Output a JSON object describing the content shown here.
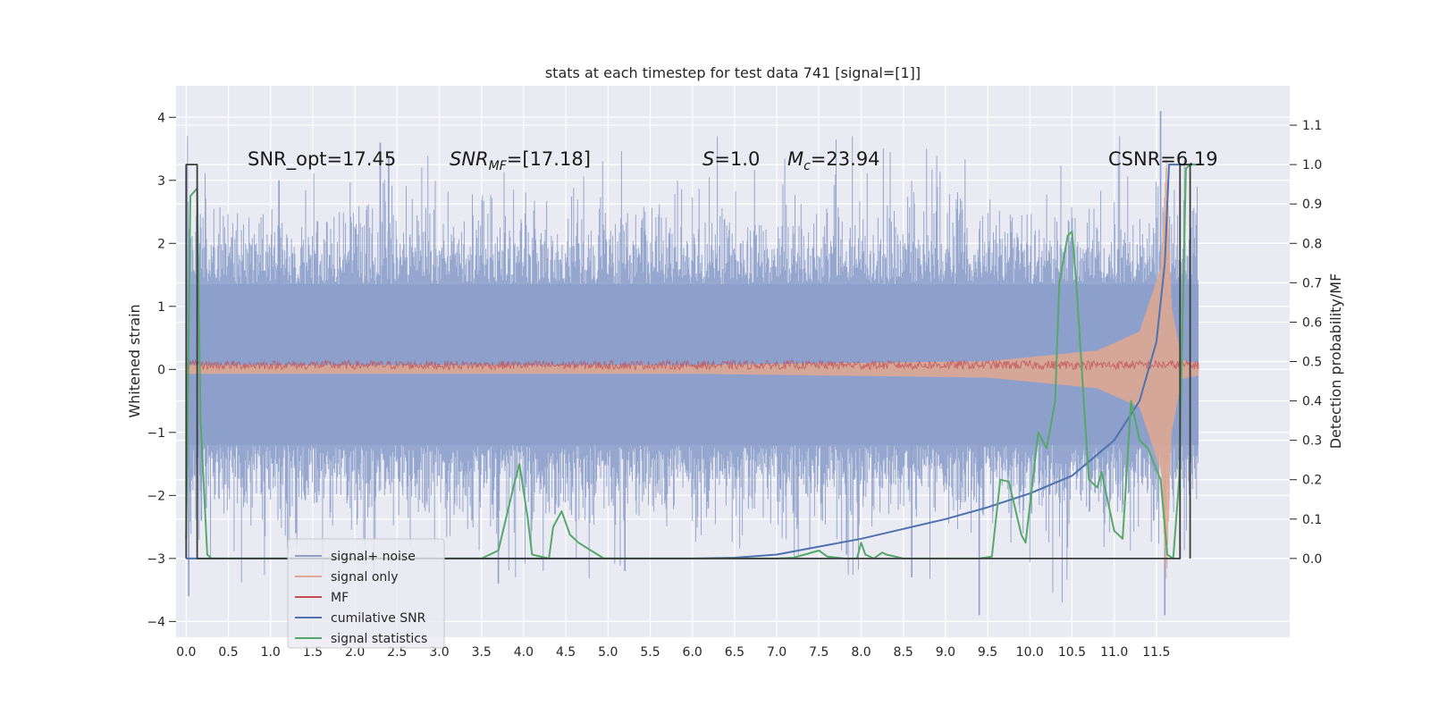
{
  "chart_data": {
    "type": "line",
    "title": "stats at each timestep for test data 741 [signal=[1]]",
    "xlabel": "",
    "ylabel": "Whitened strain",
    "ylabel_right": "Detection probability/MF",
    "xlim": [
      -0.12,
      13.08
    ],
    "ylim": [
      -4.25,
      4.5
    ],
    "ylim_right": [
      -0.2,
      1.2
    ],
    "grid": true,
    "legend_position": "lower-left",
    "x_ticks": [
      0.0,
      0.5,
      1.0,
      1.5,
      2.0,
      2.5,
      3.0,
      3.5,
      4.0,
      4.5,
      5.0,
      5.5,
      6.0,
      6.5,
      7.0,
      7.5,
      8.0,
      8.5,
      9.0,
      9.5,
      10.0,
      10.5,
      11.0,
      11.5
    ],
    "x_tick_labels": [
      "0.0",
      "0.5",
      "1.0",
      "1.5",
      "2.0",
      "2.5",
      "3.0",
      "3.5",
      "4.0",
      "4.5",
      "5.0",
      "5.5",
      "6.0",
      "6.5",
      "7.0",
      "7.5",
      "8.0",
      "8.5",
      "9.0",
      "9.5",
      "10.0",
      "10.5",
      "11.0",
      "11.5"
    ],
    "y_ticks": [
      -4,
      -3,
      -2,
      -1,
      0,
      1,
      2,
      3,
      4
    ],
    "y_tick_labels": [
      "−4",
      "−3",
      "−2",
      "−1",
      "0",
      "1",
      "2",
      "3",
      "4"
    ],
    "y_right_ticks": [
      0.0,
      0.1,
      0.2,
      0.3,
      0.4,
      0.5,
      0.6,
      0.7,
      0.8,
      0.9,
      1.0,
      1.1
    ],
    "y_right_tick_labels": [
      "0.0",
      "0.1",
      "0.2",
      "0.3",
      "0.4",
      "0.5",
      "0.6",
      "0.7",
      "0.8",
      "0.9",
      "1.0",
      "1.1"
    ],
    "annotations": {
      "snr_opt": "SNR_opt=17.45",
      "snr_mf_base": "SNR",
      "snr_mf_sub": "MF",
      "snr_mf_tail": "=[17.18]",
      "s_var": "S",
      "s_tail": "=1.0",
      "mc_base": "M",
      "mc_sub": "c",
      "mc_tail": "=23.94",
      "csnr": "CSNR=6.19"
    },
    "series": [
      {
        "name": "signal+ noise",
        "color": "#8da0cb",
        "kind": "noise_band",
        "x_range": [
          0.0,
          12.0
        ],
        "envelope": [
          -1.2,
          1.35
        ],
        "extreme_range": [
          -3.9,
          4.1
        ],
        "values": [
          {
            "x": 0.0,
            "y": 3.2
          },
          {
            "x": 0.03,
            "y": -3.6
          },
          {
            "x": 0.18,
            "y": -2.4
          },
          {
            "x": 1.1,
            "y": 3.0
          },
          {
            "x": 1.3,
            "y": -2.6
          },
          {
            "x": 2.3,
            "y": 3.6
          },
          {
            "x": 2.4,
            "y": 3.4
          },
          {
            "x": 3.7,
            "y": -3.4
          },
          {
            "x": 5.2,
            "y": -3.2
          },
          {
            "x": 8.6,
            "y": -3.3
          },
          {
            "x": 9.4,
            "y": -3.9
          },
          {
            "x": 11.55,
            "y": 4.1
          },
          {
            "x": 11.6,
            "y": -3.9
          }
        ]
      },
      {
        "name": "signal only",
        "color": "#e1a890",
        "kind": "chirp",
        "x_range": [
          0.0,
          12.0
        ],
        "amplitude": [
          [
            0.0,
            0.07
          ],
          [
            6.0,
            0.07
          ],
          [
            9.5,
            0.13
          ],
          [
            10.8,
            0.3
          ],
          [
            11.3,
            0.6
          ],
          [
            11.55,
            1.6
          ],
          [
            11.62,
            3.4
          ],
          [
            11.68,
            1.0
          ],
          [
            11.8,
            0.15
          ],
          [
            12.0,
            0.1
          ]
        ]
      },
      {
        "name": "MF",
        "color": "#c44e52",
        "kind": "band",
        "x_range": [
          0.0,
          12.0
        ],
        "center": 0.07,
        "halfwidth": 0.07
      },
      {
        "name": "cumilative SNR",
        "color": "#4c72b0",
        "axis": "right",
        "x": [
          0.0,
          6.0,
          6.5,
          7.0,
          7.5,
          8.0,
          8.5,
          9.0,
          9.5,
          10.0,
          10.5,
          11.0,
          11.3,
          11.5,
          11.6,
          11.65,
          11.7,
          12.0
        ],
        "values": [
          0.0,
          0.0,
          0.002,
          0.01,
          0.03,
          0.05,
          0.075,
          0.1,
          0.13,
          0.165,
          0.21,
          0.3,
          0.4,
          0.55,
          0.75,
          1.0,
          1.0,
          1.0
        ]
      },
      {
        "name": "signal statistics",
        "color": "#55a868",
        "axis": "right",
        "x": [
          0.0,
          0.05,
          0.13,
          0.17,
          0.25,
          0.3,
          1.0,
          3.5,
          3.7,
          3.9,
          3.95,
          4.05,
          4.1,
          4.3,
          4.35,
          4.45,
          4.55,
          4.65,
          4.8,
          4.95,
          7.0,
          7.2,
          7.5,
          7.6,
          7.8,
          7.95,
          8.0,
          8.05,
          8.15,
          8.25,
          8.3,
          8.5,
          9.4,
          9.55,
          9.65,
          9.75,
          9.9,
          9.95,
          10.1,
          10.2,
          10.3,
          10.35,
          10.45,
          10.5,
          10.55,
          10.7,
          10.8,
          10.85,
          10.95,
          11.0,
          11.1,
          11.2,
          11.3,
          11.4,
          11.55,
          11.63,
          11.7,
          11.77,
          11.85,
          11.9,
          12.0
        ],
        "values": [
          0.05,
          0.92,
          0.94,
          0.35,
          0.01,
          0.0,
          0.0,
          0.0,
          0.02,
          0.2,
          0.24,
          0.1,
          0.01,
          0.0,
          0.08,
          0.12,
          0.06,
          0.04,
          0.02,
          0.0,
          0.0,
          0.002,
          0.02,
          0.005,
          0.0,
          0.0,
          0.04,
          0.01,
          0.0,
          0.015,
          0.01,
          0.0,
          0.0,
          0.005,
          0.2,
          0.195,
          0.06,
          0.04,
          0.32,
          0.28,
          0.4,
          0.7,
          0.82,
          0.83,
          0.7,
          0.2,
          0.18,
          0.22,
          0.12,
          0.07,
          0.05,
          0.4,
          0.3,
          0.28,
          0.2,
          0.01,
          0.0,
          0.2,
          0.99,
          1.0,
          1.0
        ]
      },
      {
        "name": "",
        "color": "#3b3b3b",
        "axis": "right",
        "kind": "step",
        "x": [
          0.0,
          0.0,
          0.13,
          0.13,
          11.78,
          11.78,
          11.9,
          11.9
        ],
        "values": [
          0.0,
          1.0,
          1.0,
          0.0,
          0.0,
          1.0,
          1.0,
          0.0
        ]
      }
    ],
    "legend_items": [
      {
        "label": "signal+ noise",
        "color": "#8da0cb"
      },
      {
        "label": "signal only",
        "color": "#e1a890"
      },
      {
        "label": "MF",
        "color": "#c44e52"
      },
      {
        "label": "cumilative SNR",
        "color": "#4c72b0"
      },
      {
        "label": "signal statistics",
        "color": "#55a868"
      }
    ],
    "colors": {
      "plot_background": "#eaeaf2",
      "grid": "#ffffff"
    }
  }
}
